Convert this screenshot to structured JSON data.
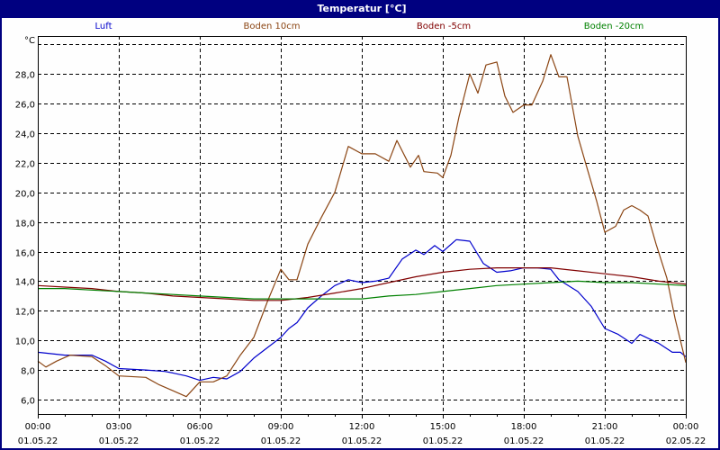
{
  "window": {
    "title": "Temperatur [°C]"
  },
  "legend": [
    {
      "label": "Luft",
      "color": "#0000cc"
    },
    {
      "label": "Boden 10cm",
      "color": "#8b4513"
    },
    {
      "label": "Boden -5cm",
      "color": "#800000"
    },
    {
      "label": "Boden -20cm",
      "color": "#008000"
    }
  ],
  "chart_data": {
    "type": "line",
    "title": "Temperatur [°C]",
    "ylabel": "°C",
    "xlabel": "",
    "ylim": [
      5.0,
      30.5
    ],
    "xlim": [
      0,
      24
    ],
    "grid": true,
    "legend_position": "top",
    "y_ticks": [
      6,
      8,
      10,
      12,
      14,
      16,
      18,
      20,
      22,
      24,
      26,
      28,
      30
    ],
    "y_tick_labels": [
      "6,0",
      "8,0",
      "10,0",
      "12,0",
      "14,0",
      "16,0",
      "18,0",
      "20,0",
      "22,0",
      "24,0",
      "26,0",
      "28,0",
      ""
    ],
    "x_ticks": [
      0,
      3,
      6,
      9,
      12,
      15,
      18,
      21,
      24
    ],
    "x_tick_labels": [
      [
        "00:00",
        "01.05.22"
      ],
      [
        "03:00",
        "01.05.22"
      ],
      [
        "06:00",
        "01.05.22"
      ],
      [
        "09:00",
        "01.05.22"
      ],
      [
        "12:00",
        "01.05.22"
      ],
      [
        "15:00",
        "01.05.22"
      ],
      [
        "18:00",
        "01.05.22"
      ],
      [
        "21:00",
        "01.05.22"
      ],
      [
        "00:00",
        "02.05.22"
      ]
    ],
    "series": [
      {
        "name": "Luft",
        "color": "#0000cc",
        "points": [
          [
            0,
            9.2
          ],
          [
            0.5,
            9.1
          ],
          [
            1,
            9.0
          ],
          [
            2,
            9.0
          ],
          [
            2.5,
            8.6
          ],
          [
            3,
            8.1
          ],
          [
            4,
            8.0
          ],
          [
            4.7,
            7.9
          ],
          [
            5,
            7.8
          ],
          [
            5.5,
            7.6
          ],
          [
            6,
            7.3
          ],
          [
            6.5,
            7.5
          ],
          [
            7,
            7.4
          ],
          [
            7.5,
            7.9
          ],
          [
            8,
            8.8
          ],
          [
            8.5,
            9.5
          ],
          [
            9,
            10.2
          ],
          [
            9.3,
            10.8
          ],
          [
            9.6,
            11.2
          ],
          [
            10,
            12.2
          ],
          [
            10.5,
            13.0
          ],
          [
            11,
            13.7
          ],
          [
            11.5,
            14.1
          ],
          [
            12,
            13.9
          ],
          [
            12.5,
            14.0
          ],
          [
            13,
            14.2
          ],
          [
            13.5,
            15.5
          ],
          [
            14,
            16.1
          ],
          [
            14.3,
            15.8
          ],
          [
            14.7,
            16.4
          ],
          [
            15,
            16.0
          ],
          [
            15.5,
            16.8
          ],
          [
            16,
            16.7
          ],
          [
            16.5,
            15.2
          ],
          [
            17,
            14.6
          ],
          [
            17.5,
            14.7
          ],
          [
            18,
            14.9
          ],
          [
            18.5,
            14.9
          ],
          [
            19,
            14.8
          ],
          [
            19.3,
            14.1
          ],
          [
            20,
            13.3
          ],
          [
            20.5,
            12.3
          ],
          [
            21,
            10.8
          ],
          [
            21.5,
            10.4
          ],
          [
            22,
            9.8
          ],
          [
            22.3,
            10.4
          ],
          [
            23,
            9.8
          ],
          [
            23.5,
            9.2
          ],
          [
            23.8,
            9.2
          ],
          [
            24,
            8.9
          ]
        ]
      },
      {
        "name": "Boden 10cm",
        "color": "#8b4513",
        "points": [
          [
            0,
            8.6
          ],
          [
            0.3,
            8.2
          ],
          [
            0.7,
            8.6
          ],
          [
            1.2,
            9.0
          ],
          [
            2,
            8.9
          ],
          [
            2.5,
            8.3
          ],
          [
            3,
            7.6
          ],
          [
            4,
            7.5
          ],
          [
            4.5,
            7.0
          ],
          [
            5,
            6.6
          ],
          [
            5.5,
            6.2
          ],
          [
            6,
            7.2
          ],
          [
            6.5,
            7.2
          ],
          [
            7,
            7.6
          ],
          [
            7.5,
            9.0
          ],
          [
            8,
            10.2
          ],
          [
            8.5,
            12.6
          ],
          [
            9,
            14.8
          ],
          [
            9.3,
            14.1
          ],
          [
            9.6,
            14.1
          ],
          [
            10,
            16.5
          ],
          [
            10.5,
            18.3
          ],
          [
            11,
            20.0
          ],
          [
            11.5,
            23.1
          ],
          [
            12,
            22.6
          ],
          [
            12.5,
            22.6
          ],
          [
            13,
            22.1
          ],
          [
            13.3,
            23.5
          ],
          [
            13.8,
            21.7
          ],
          [
            14.1,
            22.5
          ],
          [
            14.3,
            21.4
          ],
          [
            14.8,
            21.3
          ],
          [
            15,
            21.0
          ],
          [
            15.3,
            22.5
          ],
          [
            15.6,
            25.1
          ],
          [
            16,
            28.0
          ],
          [
            16.3,
            26.7
          ],
          [
            16.6,
            28.6
          ],
          [
            17,
            28.8
          ],
          [
            17.3,
            26.5
          ],
          [
            17.6,
            25.4
          ],
          [
            18,
            25.9
          ],
          [
            18.3,
            25.9
          ],
          [
            18.7,
            27.5
          ],
          [
            19,
            29.3
          ],
          [
            19.3,
            27.8
          ],
          [
            19.6,
            27.8
          ],
          [
            20,
            23.8
          ],
          [
            20.3,
            21.9
          ],
          [
            20.7,
            19.4
          ],
          [
            21,
            17.3
          ],
          [
            21.4,
            17.7
          ],
          [
            21.7,
            18.8
          ],
          [
            22,
            19.1
          ],
          [
            22.3,
            18.8
          ],
          [
            22.6,
            18.4
          ],
          [
            22.9,
            16.5
          ],
          [
            23.3,
            14.2
          ],
          [
            23.6,
            11.5
          ],
          [
            24,
            8.5
          ]
        ]
      },
      {
        "name": "Boden -5cm",
        "color": "#800000",
        "points": [
          [
            0,
            13.7
          ],
          [
            1,
            13.6
          ],
          [
            2,
            13.5
          ],
          [
            3,
            13.3
          ],
          [
            4,
            13.2
          ],
          [
            5,
            13.0
          ],
          [
            6,
            12.9
          ],
          [
            7,
            12.8
          ],
          [
            8,
            12.7
          ],
          [
            9,
            12.7
          ],
          [
            10,
            12.9
          ],
          [
            11,
            13.2
          ],
          [
            12,
            13.5
          ],
          [
            13,
            13.9
          ],
          [
            14,
            14.3
          ],
          [
            15,
            14.6
          ],
          [
            16,
            14.8
          ],
          [
            17,
            14.9
          ],
          [
            18,
            14.9
          ],
          [
            19,
            14.9
          ],
          [
            20,
            14.7
          ],
          [
            21,
            14.5
          ],
          [
            22,
            14.3
          ],
          [
            23,
            14.0
          ],
          [
            24,
            13.8
          ]
        ]
      },
      {
        "name": "Boden -20cm",
        "color": "#008000",
        "points": [
          [
            0,
            13.5
          ],
          [
            1,
            13.5
          ],
          [
            2,
            13.4
          ],
          [
            3,
            13.3
          ],
          [
            4,
            13.2
          ],
          [
            5,
            13.1
          ],
          [
            6,
            13.0
          ],
          [
            7,
            12.9
          ],
          [
            8,
            12.8
          ],
          [
            9,
            12.8
          ],
          [
            10,
            12.8
          ],
          [
            11,
            12.8
          ],
          [
            12,
            12.8
          ],
          [
            13,
            13.0
          ],
          [
            14,
            13.1
          ],
          [
            15,
            13.3
          ],
          [
            16,
            13.5
          ],
          [
            17,
            13.7
          ],
          [
            18,
            13.8
          ],
          [
            19,
            13.9
          ],
          [
            20,
            14.0
          ],
          [
            21,
            13.9
          ],
          [
            22,
            13.9
          ],
          [
            23,
            13.8
          ],
          [
            24,
            13.7
          ]
        ]
      }
    ]
  }
}
